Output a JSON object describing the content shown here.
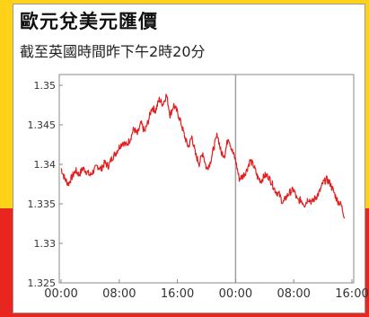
{
  "header": {
    "title": "歐元兌美元匯價",
    "subtitle": "截至英國時間昨下午2時20分"
  },
  "colors": {
    "line": "#e02020",
    "frame": "#8a8a8a",
    "divider": "#a0a0a0"
  },
  "chart_data": {
    "type": "line",
    "title": "歐元兌美元匯價",
    "subtitle": "截至英國時間昨下午2時20分",
    "xlabel": "",
    "ylabel": "",
    "ylim": [
      1.325,
      1.35
    ],
    "xlim": [
      0,
      40
    ],
    "yticks": [
      1.35,
      1.345,
      1.34,
      1.335,
      1.33,
      1.325
    ],
    "ytick_labels": [
      "1.35",
      "1.345",
      "1.34",
      "1.335",
      "1.33",
      "1.325"
    ],
    "xticks": [
      0,
      8,
      16,
      24,
      32,
      40
    ],
    "xtick_labels": [
      "00:00",
      "08:00",
      "16:00",
      "00:00",
      "08:00",
      "16:00"
    ],
    "day_divider_x": 24,
    "grid": false,
    "legend": "none",
    "series": [
      {
        "x": [
          0,
          0.5,
          1,
          1.5,
          2,
          2.5,
          3,
          3.5,
          4,
          4.5,
          5,
          5.5,
          6,
          6.5,
          7,
          7.5,
          8,
          8.5,
          9,
          9.5,
          10,
          10.5,
          11,
          11.5,
          12,
          12.5,
          13,
          13.5,
          14,
          14.5,
          15,
          15.5,
          16,
          16.5,
          17,
          17.5,
          18,
          18.5,
          19,
          19.5,
          20,
          20.5,
          21,
          21.5,
          22,
          22.5,
          23,
          23.5,
          24,
          24.5,
          25,
          25.5,
          26,
          26.5,
          27,
          27.5,
          28,
          28.5,
          29,
          29.5,
          30,
          30.5,
          31,
          31.5,
          32,
          32.5,
          33,
          33.5,
          34,
          34.5,
          35,
          35.5,
          36,
          36.5,
          37,
          37.5,
          38,
          38.5,
          39
        ],
        "values": [
          1.3395,
          1.3382,
          1.3375,
          1.3384,
          1.3392,
          1.3387,
          1.3395,
          1.3391,
          1.3386,
          1.3392,
          1.3398,
          1.3394,
          1.3402,
          1.3398,
          1.3408,
          1.3414,
          1.3422,
          1.3428,
          1.3424,
          1.3432,
          1.3445,
          1.3438,
          1.3452,
          1.3441,
          1.3455,
          1.3472,
          1.3468,
          1.3482,
          1.3476,
          1.3488,
          1.3462,
          1.3475,
          1.3466,
          1.3452,
          1.3435,
          1.3422,
          1.3435,
          1.3412,
          1.3401,
          1.3415,
          1.3394,
          1.3402,
          1.3421,
          1.3438,
          1.3415,
          1.3412,
          1.3435,
          1.3418,
          1.3405,
          1.3382,
          1.3385,
          1.3392,
          1.3405,
          1.3398,
          1.3384,
          1.3379,
          1.3386,
          1.3385,
          1.3376,
          1.3366,
          1.3362,
          1.3351,
          1.3359,
          1.3365,
          1.3368,
          1.3354,
          1.3355,
          1.3349,
          1.3357,
          1.3352,
          1.3358,
          1.3364,
          1.3376,
          1.3381,
          1.3376,
          1.3365,
          1.3354,
          1.3349,
          1.3333
        ],
        "noise": true
      }
    ]
  }
}
